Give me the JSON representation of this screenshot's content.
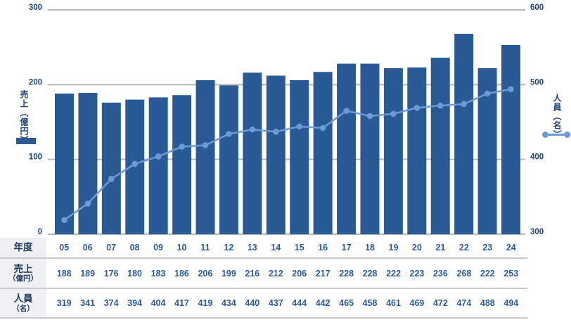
{
  "colors": {
    "bg": "#ffffff",
    "bar": "#2a5a96",
    "line": "#6c9ad6",
    "grid": "#b5b8ba",
    "tick": "#1d4374",
    "value": "#2a5a9b",
    "header": "#21395e",
    "headerbg": "#eef0f3",
    "sep": "#c7c9cb"
  },
  "chart_data": {
    "type": "bar+line",
    "categories": [
      "05",
      "06",
      "07",
      "08",
      "09",
      "10",
      "11",
      "12",
      "13",
      "14",
      "15",
      "16",
      "17",
      "18",
      "19",
      "20",
      "21",
      "22",
      "23",
      "24"
    ],
    "series": [
      {
        "name": "売上（億円）",
        "type": "bar",
        "axis": "left",
        "values": [
          188,
          189,
          176,
          180,
          183,
          186,
          206,
          199,
          216,
          212,
          206,
          217,
          228,
          228,
          222,
          223,
          236,
          268,
          222,
          253
        ]
      },
      {
        "name": "人員（名）",
        "type": "line",
        "axis": "right",
        "values": [
          319,
          341,
          374,
          394,
          404,
          417,
          419,
          434,
          440,
          437,
          444,
          442,
          465,
          458,
          461,
          469,
          472,
          474,
          488,
          494
        ]
      }
    ],
    "left_axis": {
      "title": "売上（億円）",
      "ticks": [
        "300",
        "200",
        "100",
        "0"
      ],
      "range": [
        0,
        300
      ]
    },
    "right_axis": {
      "title": "人員（名）",
      "ticks": [
        "600",
        "500",
        "400",
        "300"
      ],
      "range": [
        300,
        600
      ]
    },
    "grid": "horizontal",
    "legend_position": "beside-axis-titles"
  },
  "table": {
    "rows": [
      {
        "name": "year",
        "header_line1": "年度",
        "header_line2": "",
        "values": [
          "05",
          "06",
          "07",
          "08",
          "09",
          "10",
          "11",
          "12",
          "13",
          "14",
          "15",
          "16",
          "17",
          "18",
          "19",
          "20",
          "21",
          "22",
          "23",
          "24"
        ]
      },
      {
        "name": "sales",
        "header_line1": "売上",
        "header_line2": "（億円）",
        "values": [
          "188",
          "189",
          "176",
          "180",
          "183",
          "186",
          "206",
          "199",
          "216",
          "212",
          "206",
          "217",
          "228",
          "228",
          "222",
          "223",
          "236",
          "268",
          "222",
          "253"
        ]
      },
      {
        "name": "staff",
        "header_line1": "人員",
        "header_line2": "（名）",
        "values": [
          "319",
          "341",
          "374",
          "394",
          "404",
          "417",
          "419",
          "434",
          "440",
          "437",
          "444",
          "442",
          "465",
          "458",
          "461",
          "469",
          "472",
          "474",
          "488",
          "494"
        ]
      }
    ]
  }
}
